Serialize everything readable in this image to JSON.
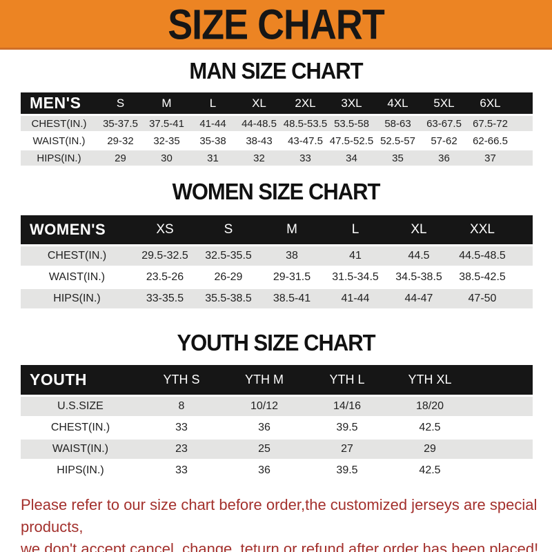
{
  "banner": {
    "title": "SIZE CHART"
  },
  "colors": {
    "banner_bg": "#EC8423",
    "table_header_bg": "#161616",
    "row_stripe": "#E4E4E3",
    "footer_text": "#A3302C"
  },
  "sections": [
    {
      "id": "men",
      "heading": "MAN SIZE CHART",
      "header_label": "MEN'S",
      "columns": [
        "S",
        "M",
        "L",
        "XL",
        "2XL",
        "3XL",
        "4XL",
        "5XL",
        "6XL"
      ],
      "rows": [
        {
          "label": "CHEST(IN.)",
          "values": [
            "35-37.5",
            "37.5-41",
            "41-44",
            "44-48.5",
            "48.5-53.5",
            "53.5-58",
            "58-63",
            "63-67.5",
            "67.5-72"
          ]
        },
        {
          "label": "WAIST(IN.)",
          "values": [
            "29-32",
            "32-35",
            "35-38",
            "38-43",
            "43-47.5",
            "47.5-52.5",
            "52.5-57",
            "57-62",
            "62-66.5"
          ]
        },
        {
          "label": "HIPS(IN.)",
          "values": [
            "29",
            "30",
            "31",
            "32",
            "33",
            "34",
            "35",
            "36",
            "37"
          ]
        }
      ]
    },
    {
      "id": "women",
      "heading": "WOMEN SIZE CHART",
      "header_label": "WOMEN'S",
      "columns": [
        "XS",
        "S",
        "M",
        "L",
        "XL",
        "XXL"
      ],
      "rows": [
        {
          "label": "CHEST(IN.)",
          "values": [
            "29.5-32.5",
            "32.5-35.5",
            "38",
            "41",
            "44.5",
            "44.5-48.5"
          ]
        },
        {
          "label": "WAIST(IN.)",
          "values": [
            "23.5-26",
            "26-29",
            "29-31.5",
            "31.5-34.5",
            "34.5-38.5",
            "38.5-42.5"
          ]
        },
        {
          "label": "HIPS(IN.)",
          "values": [
            "33-35.5",
            "35.5-38.5",
            "38.5-41",
            "41-44",
            "44-47",
            "47-50"
          ]
        }
      ]
    },
    {
      "id": "youth",
      "heading": "YOUTH SIZE CHART",
      "header_label": "YOUTH",
      "columns": [
        "YTH S",
        "YTH M",
        "YTH L",
        "YTH XL"
      ],
      "rows": [
        {
          "label": "U.S.SIZE",
          "values": [
            "8",
            "10/12",
            "14/16",
            "18/20"
          ]
        },
        {
          "label": "CHEST(IN.)",
          "values": [
            "33",
            "36",
            "39.5",
            "42.5"
          ]
        },
        {
          "label": "WAIST(IN.)",
          "values": [
            "23",
            "25",
            "27",
            "29"
          ]
        },
        {
          "label": "HIPS(IN.)",
          "values": [
            "33",
            "36",
            "39.5",
            "42.5"
          ]
        }
      ]
    }
  ],
  "footer": {
    "line1": "Please refer to our size chart before order,the customized jerseys are special products,",
    "line2": "we don't accept cancel, change, teturn or refund after order has been placed!"
  }
}
